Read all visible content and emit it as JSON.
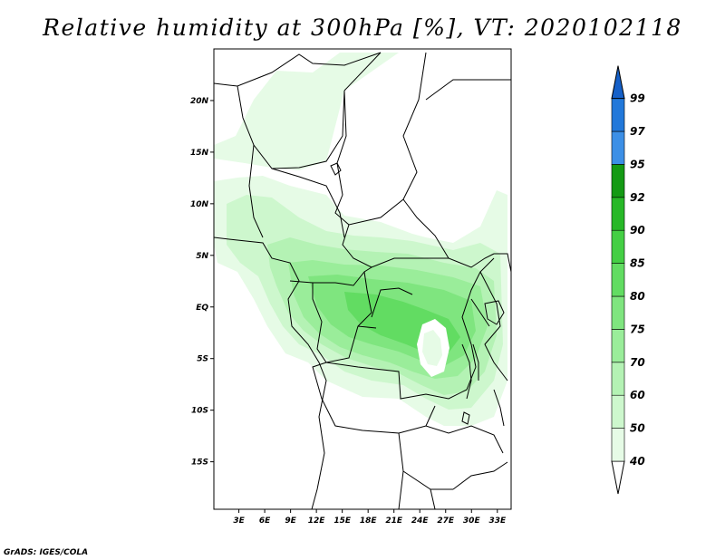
{
  "title": "Relative humidity at 300hPa [%], VT: 2020102118",
  "credit": "GrADS: IGES/COLA",
  "map": {
    "lat_ticks": [
      {
        "value": 20,
        "label": "20N"
      },
      {
        "value": 15,
        "label": "15N"
      },
      {
        "value": 10,
        "label": "10N"
      },
      {
        "value": 5,
        "label": "5N"
      },
      {
        "value": 0,
        "label": "EQ"
      },
      {
        "value": -5,
        "label": "5S"
      },
      {
        "value": -10,
        "label": "10S"
      },
      {
        "value": -15,
        "label": "15S"
      }
    ],
    "lon_ticks": [
      {
        "value": 3,
        "label": "3E"
      },
      {
        "value": 6,
        "label": "6E"
      },
      {
        "value": 9,
        "label": "9E"
      },
      {
        "value": 12,
        "label": "12E"
      },
      {
        "value": 15,
        "label": "15E"
      },
      {
        "value": 18,
        "label": "18E"
      },
      {
        "value": 21,
        "label": "21E"
      },
      {
        "value": 24,
        "label": "24E"
      },
      {
        "value": 27,
        "label": "27E"
      },
      {
        "value": 30,
        "label": "30E"
      },
      {
        "value": 33,
        "label": "33E"
      }
    ],
    "lon_range": [
      0.1,
      34.6
    ],
    "lat_range": [
      -19.6,
      25
    ]
  },
  "legend": {
    "levels": [
      {
        "label": "40",
        "color": "#e6fbe6"
      },
      {
        "label": "50",
        "color": "#cdf7cd"
      },
      {
        "label": "60",
        "color": "#b4f2b4"
      },
      {
        "label": "70",
        "color": "#9aed9a"
      },
      {
        "label": "75",
        "color": "#7fe57f"
      },
      {
        "label": "80",
        "color": "#62dc62"
      },
      {
        "label": "85",
        "color": "#44cf44"
      },
      {
        "label": "90",
        "color": "#27b827"
      },
      {
        "label": "92",
        "color": "#149a14"
      },
      {
        "label": "95",
        "color": "#3c8fe6"
      },
      {
        "label": "97",
        "color": "#2278da"
      },
      {
        "label": "99",
        "color": "#1560c8"
      }
    ],
    "below_color": "#ffffff",
    "above_color": "#1560c8"
  }
}
